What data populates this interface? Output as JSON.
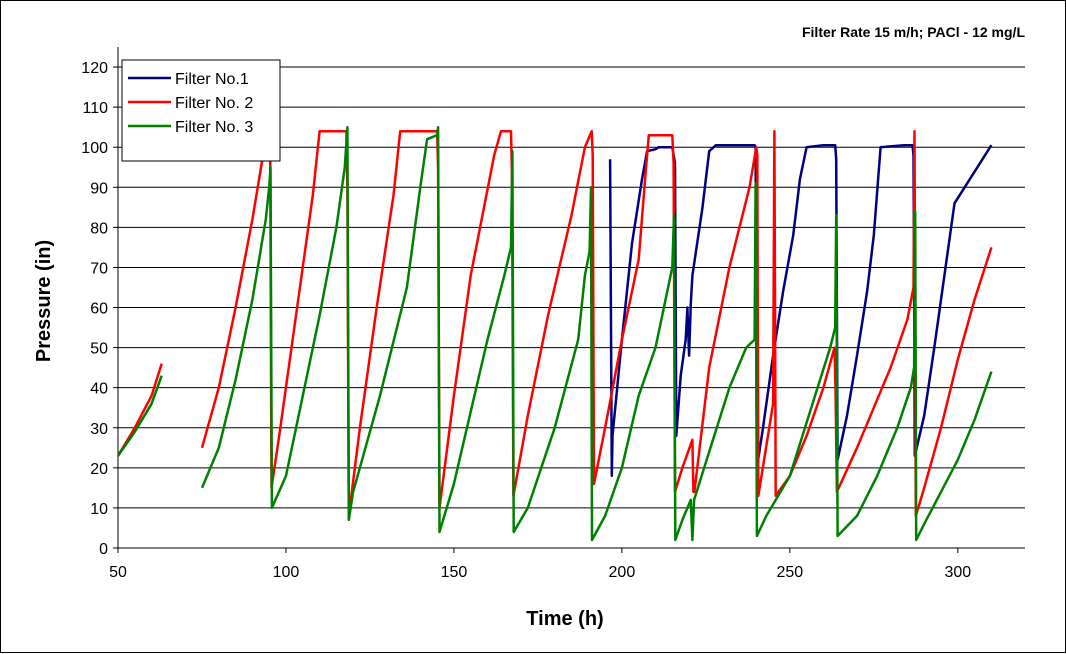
{
  "chart_data": {
    "type": "line",
    "title": "Filter Rate 15 m/h; PACl - 12 mg/L",
    "xlabel": "Time (h)",
    "ylabel": "Pressure (in)",
    "xlim": [
      50,
      320
    ],
    "ylim": [
      0,
      125
    ],
    "xticks": [
      50,
      100,
      150,
      200,
      250,
      300
    ],
    "yticks": [
      0,
      10,
      20,
      30,
      40,
      50,
      60,
      70,
      80,
      90,
      100,
      110,
      120
    ],
    "grid": "horizontal",
    "legend_position": "top-left",
    "series": [
      {
        "name": "Filter No.1",
        "color": "#000080",
        "x": [
          196.5,
          197,
          197.2,
          200,
          203,
          206,
          207.5,
          210,
          211,
          215,
          215.8,
          216.2,
          217.5,
          219,
          219.5,
          220,
          220.5,
          221,
          224,
          226,
          228,
          235,
          239.5,
          239.8,
          240.2,
          242,
          245,
          248,
          251,
          253,
          255,
          260,
          262,
          263.5,
          263.8,
          264.2,
          267,
          270,
          273,
          275,
          277,
          284,
          286.5,
          286.8,
          287.2,
          290,
          293,
          296,
          299,
          310
        ],
        "y": [
          97,
          18,
          28,
          52,
          76,
          92,
          99,
          99.5,
          100,
          100,
          96,
          28,
          43,
          52,
          60,
          48,
          61,
          68,
          85,
          99,
          100.5,
          100.5,
          100.5,
          100,
          20,
          30,
          48,
          64,
          78,
          92,
          100,
          100.5,
          100.5,
          100.5,
          97,
          22,
          33,
          48,
          64,
          78,
          100,
          100.5,
          100.5,
          98,
          23,
          33,
          50,
          68,
          86,
          100.5
        ]
      },
      {
        "name": "Filter No. 2",
        "color": "#ff0000",
        "x": [
          50,
          55,
          60,
          63,
          null,
          75,
          80,
          85,
          90,
          93,
          95,
          95.3,
          95.7,
          98,
          103,
          108,
          110,
          118,
          118.3,
          118.7,
          122,
          127,
          132,
          134,
          145,
          145.3,
          145.7,
          150,
          155,
          162,
          164,
          167,
          167.3,
          167.7,
          172,
          178,
          185,
          189,
          191,
          191.3,
          191.7,
          195,
          200,
          205,
          207,
          208,
          215,
          215.4,
          215.8,
          218,
          221,
          221.3,
          221.6,
          226,
          232,
          238,
          240,
          240.3,
          240.6,
          245,
          245.4,
          245.8,
          250,
          255,
          260,
          263.3,
          263.6,
          264,
          270,
          275,
          280,
          285,
          286.8,
          287.1,
          287.5,
          290,
          295,
          300,
          305,
          310
        ],
        "y": [
          23,
          30,
          38,
          46,
          null,
          25,
          40,
          60,
          82,
          97,
          100,
          100,
          15,
          28,
          58,
          88,
          104,
          104,
          90,
          8,
          30,
          60,
          88,
          104,
          104,
          95,
          10,
          38,
          68,
          98,
          104,
          104,
          93,
          13,
          33,
          58,
          83,
          100,
          104,
          98,
          16,
          30,
          52,
          72,
          93,
          103,
          103,
          96,
          14,
          20,
          27,
          14,
          14,
          45,
          70,
          90,
          100,
          98,
          13,
          36,
          104,
          13,
          18,
          28,
          40,
          50,
          40,
          14,
          25,
          35,
          45,
          57,
          65,
          104,
          8,
          15,
          30,
          47,
          62,
          75
        ]
      },
      {
        "name": "Filter No. 3",
        "color": "#008000",
        "x": [
          50,
          55,
          60,
          63,
          null,
          75,
          80,
          85,
          90,
          94,
          95,
          95.4,
          95.8,
          100,
          105,
          110,
          115,
          117.5,
          118.3,
          118.7,
          120,
          128,
          136,
          140,
          142,
          145,
          145.3,
          145.7,
          150,
          155,
          160,
          165,
          167,
          167.4,
          167.8,
          172,
          180,
          187,
          189,
          190.4,
          190.8,
          191.1,
          195,
          200,
          205,
          210,
          215,
          215.5,
          215.9,
          218,
          220.5,
          221,
          221.5,
          226,
          232,
          237,
          239.5,
          239.8,
          240.2,
          243,
          250,
          256,
          262,
          263.5,
          263.8,
          264.2,
          270,
          276,
          282,
          286,
          287,
          287.3,
          287.6,
          290,
          295,
          300,
          305,
          310
        ],
        "y": [
          23,
          29,
          36,
          43,
          null,
          15,
          25,
          42,
          62,
          82,
          90,
          95,
          10,
          18,
          38,
          58,
          80,
          95,
          105,
          7,
          14,
          38,
          65,
          90,
          102,
          103,
          105,
          4,
          16,
          34,
          52,
          68,
          75,
          99,
          4,
          10,
          30,
          52,
          68,
          74,
          90,
          2,
          8,
          20,
          38,
          50,
          70,
          83,
          2,
          7,
          12,
          2,
          12,
          24,
          40,
          50,
          52,
          91,
          3,
          8,
          18,
          34,
          50,
          55,
          83,
          3,
          8,
          18,
          30,
          40,
          45,
          84,
          2,
          6,
          14,
          22,
          32,
          44
        ]
      }
    ]
  }
}
